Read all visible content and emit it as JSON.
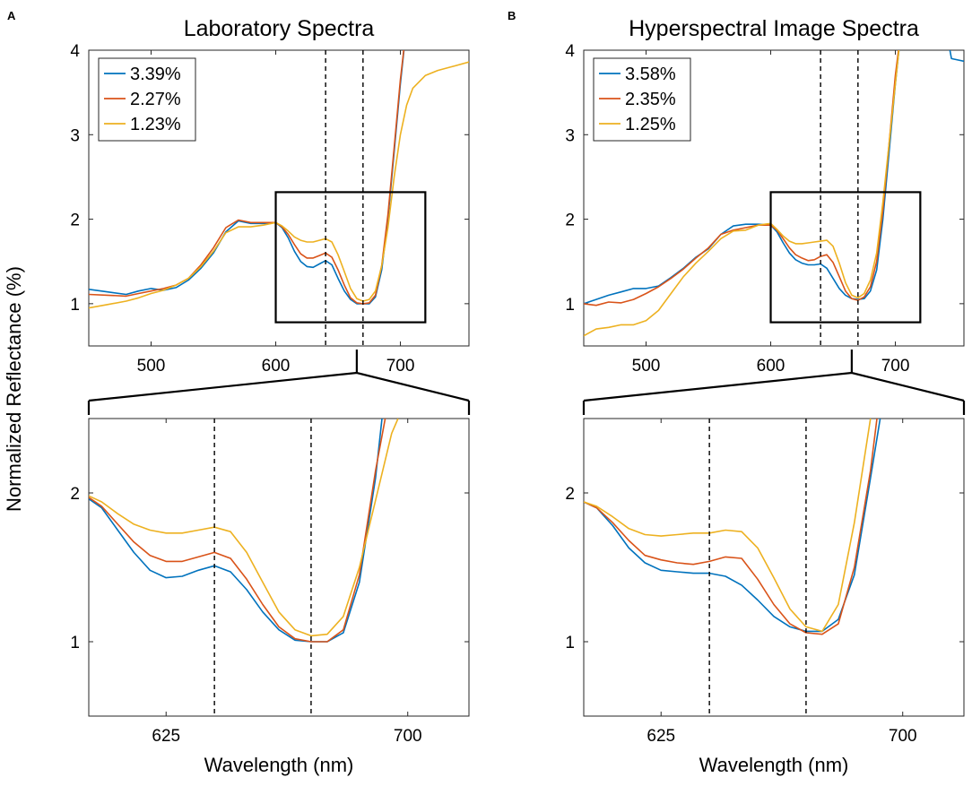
{
  "figure": {
    "ylabel": "Normalized Reflectance (%)",
    "xlabel": "Wavelength (nm)"
  },
  "chart_data": [
    {
      "id": "A-top",
      "type": "line",
      "panel_letter": "A",
      "title": "Laboratory Spectra",
      "xlim": [
        450,
        755
      ],
      "ylim": [
        0.5,
        4
      ],
      "xticks": [
        500,
        600,
        700
      ],
      "yticks": [
        1,
        2,
        3,
        4
      ],
      "legend": "top-left",
      "legend_order": [
        0,
        1,
        2
      ],
      "vlines": [
        640,
        670
      ],
      "zoom_box": {
        "x": [
          600,
          720
        ],
        "y": [
          0.78,
          2.32
        ]
      },
      "series": [
        {
          "name": "3.39%",
          "color": "#0072BD",
          "x": [
            450,
            465,
            480,
            490,
            500,
            510,
            520,
            530,
            540,
            550,
            560,
            570,
            580,
            590,
            600,
            605,
            610,
            615,
            620,
            625,
            630,
            635,
            640,
            645,
            650,
            655,
            660,
            665,
            670,
            675,
            680,
            685,
            690,
            695,
            700,
            705
          ],
          "y": [
            1.17,
            1.14,
            1.11,
            1.15,
            1.18,
            1.16,
            1.19,
            1.28,
            1.42,
            1.6,
            1.85,
            1.98,
            1.95,
            1.95,
            1.96,
            1.9,
            1.78,
            1.62,
            1.5,
            1.44,
            1.43,
            1.47,
            1.51,
            1.46,
            1.3,
            1.15,
            1.05,
            1.0,
            1.0,
            1.0,
            1.08,
            1.4,
            2.0,
            2.8,
            3.6,
            4.3
          ]
        },
        {
          "name": "2.27%",
          "color": "#D95319",
          "x": [
            450,
            465,
            480,
            490,
            500,
            510,
            520,
            530,
            540,
            550,
            560,
            570,
            580,
            590,
            600,
            605,
            610,
            615,
            620,
            625,
            630,
            635,
            640,
            645,
            650,
            655,
            660,
            665,
            670,
            675,
            680,
            685,
            690,
            695,
            700,
            705
          ],
          "y": [
            1.11,
            1.1,
            1.09,
            1.12,
            1.15,
            1.18,
            1.22,
            1.3,
            1.46,
            1.66,
            1.9,
            1.99,
            1.96,
            1.96,
            1.96,
            1.91,
            1.82,
            1.7,
            1.59,
            1.54,
            1.54,
            1.57,
            1.6,
            1.55,
            1.4,
            1.22,
            1.07,
            1.01,
            1.0,
            1.01,
            1.1,
            1.45,
            2.05,
            2.85,
            3.65,
            4.3
          ]
        },
        {
          "name": "1.23%",
          "color": "#EDB120",
          "x": [
            450,
            465,
            480,
            490,
            500,
            510,
            520,
            530,
            540,
            550,
            560,
            570,
            580,
            590,
            600,
            605,
            610,
            615,
            620,
            625,
            630,
            635,
            640,
            645,
            650,
            655,
            660,
            665,
            670,
            675,
            680,
            685,
            690,
            695,
            700,
            705,
            710,
            720,
            730,
            740,
            755
          ],
          "y": [
            0.95,
            0.99,
            1.03,
            1.07,
            1.12,
            1.16,
            1.22,
            1.3,
            1.44,
            1.62,
            1.84,
            1.91,
            1.91,
            1.93,
            1.96,
            1.92,
            1.86,
            1.79,
            1.75,
            1.73,
            1.73,
            1.75,
            1.77,
            1.73,
            1.58,
            1.38,
            1.18,
            1.06,
            1.03,
            1.05,
            1.15,
            1.45,
            1.9,
            2.5,
            3.0,
            3.35,
            3.55,
            3.7,
            3.76,
            3.8,
            3.86
          ]
        }
      ]
    },
    {
      "id": "A-bottom",
      "type": "line",
      "xlim": [
        601,
        719
      ],
      "ylim": [
        0.5,
        2.5
      ],
      "xticks": [
        625,
        700
      ],
      "yticks": [
        1,
        2
      ],
      "vlines": [
        640,
        670
      ],
      "series": [
        {
          "name": "3.39%",
          "color": "#0072BD",
          "x": [
            601,
            605,
            610,
            615,
            620,
            625,
            630,
            635,
            640,
            645,
            650,
            655,
            660,
            665,
            670,
            675,
            680,
            685,
            690,
            692
          ],
          "y": [
            1.96,
            1.9,
            1.75,
            1.6,
            1.48,
            1.43,
            1.44,
            1.48,
            1.51,
            1.47,
            1.35,
            1.2,
            1.08,
            1.01,
            1.0,
            1.0,
            1.06,
            1.4,
            2.1,
            2.5
          ]
        },
        {
          "name": "2.27%",
          "color": "#D95319",
          "x": [
            601,
            605,
            610,
            615,
            620,
            625,
            630,
            635,
            640,
            645,
            650,
            655,
            660,
            665,
            670,
            675,
            680,
            685,
            690,
            693
          ],
          "y": [
            1.97,
            1.91,
            1.79,
            1.67,
            1.58,
            1.54,
            1.54,
            1.57,
            1.6,
            1.56,
            1.42,
            1.25,
            1.1,
            1.02,
            1.0,
            1.0,
            1.08,
            1.45,
            2.15,
            2.5
          ]
        },
        {
          "name": "1.23%",
          "color": "#EDB120",
          "x": [
            601,
            605,
            610,
            615,
            620,
            625,
            630,
            635,
            640,
            645,
            650,
            655,
            660,
            665,
            670,
            675,
            680,
            685,
            690,
            695,
            697
          ],
          "y": [
            1.98,
            1.94,
            1.86,
            1.79,
            1.75,
            1.73,
            1.73,
            1.75,
            1.77,
            1.74,
            1.6,
            1.4,
            1.2,
            1.08,
            1.04,
            1.05,
            1.17,
            1.5,
            1.95,
            2.4,
            2.5
          ]
        }
      ]
    },
    {
      "id": "B-top",
      "type": "line",
      "panel_letter": "B",
      "title": "Hyperspectral Image Spectra",
      "xlim": [
        450,
        755
      ],
      "ylim": [
        0.5,
        4
      ],
      "xticks": [
        500,
        600,
        700
      ],
      "yticks": [
        1,
        2,
        3,
        4
      ],
      "legend": "top-left",
      "legend_order": [
        0,
        1,
        2
      ],
      "vlines": [
        640,
        670
      ],
      "zoom_box": {
        "x": [
          600,
          720
        ],
        "y": [
          0.78,
          2.32
        ]
      },
      "series": [
        {
          "name": "3.58%",
          "color": "#0072BD",
          "x": [
            450,
            460,
            470,
            480,
            490,
            500,
            510,
            520,
            530,
            540,
            550,
            560,
            570,
            580,
            590,
            600,
            605,
            610,
            615,
            620,
            625,
            630,
            635,
            640,
            645,
            650,
            655,
            660,
            665,
            670,
            675,
            680,
            685,
            690,
            695,
            700,
            705,
            740,
            745,
            755
          ],
          "y": [
            1.0,
            1.05,
            1.1,
            1.14,
            1.18,
            1.18,
            1.21,
            1.31,
            1.42,
            1.55,
            1.65,
            1.82,
            1.92,
            1.94,
            1.94,
            1.93,
            1.85,
            1.72,
            1.6,
            1.52,
            1.48,
            1.46,
            1.46,
            1.47,
            1.42,
            1.3,
            1.18,
            1.1,
            1.06,
            1.05,
            1.06,
            1.15,
            1.4,
            2.0,
            2.8,
            3.6,
            4.3,
            4.3,
            3.9,
            3.87
          ]
        },
        {
          "name": "2.35%",
          "color": "#D95319",
          "x": [
            450,
            460,
            470,
            480,
            490,
            500,
            510,
            520,
            530,
            540,
            550,
            560,
            570,
            580,
            590,
            600,
            605,
            610,
            615,
            620,
            625,
            630,
            635,
            640,
            645,
            650,
            655,
            660,
            665,
            670,
            675,
            680,
            685,
            690,
            695,
            700,
            705
          ],
          "y": [
            1.0,
            0.98,
            1.02,
            1.01,
            1.05,
            1.12,
            1.2,
            1.3,
            1.41,
            1.54,
            1.66,
            1.82,
            1.87,
            1.9,
            1.93,
            1.93,
            1.87,
            1.77,
            1.66,
            1.58,
            1.54,
            1.51,
            1.52,
            1.56,
            1.58,
            1.49,
            1.32,
            1.15,
            1.06,
            1.04,
            1.08,
            1.2,
            1.5,
            2.1,
            2.9,
            3.7,
            4.3
          ]
        },
        {
          "name": "1.25%",
          "color": "#EDB120",
          "x": [
            450,
            460,
            470,
            480,
            490,
            500,
            510,
            520,
            530,
            540,
            550,
            560,
            570,
            580,
            590,
            600,
            605,
            610,
            615,
            620,
            625,
            630,
            635,
            640,
            645,
            650,
            655,
            660,
            665,
            670,
            675,
            680,
            685,
            690,
            695,
            700,
            705
          ],
          "y": [
            0.62,
            0.7,
            0.72,
            0.75,
            0.75,
            0.8,
            0.92,
            1.12,
            1.32,
            1.48,
            1.62,
            1.77,
            1.86,
            1.87,
            1.93,
            1.95,
            1.88,
            1.8,
            1.74,
            1.71,
            1.71,
            1.72,
            1.73,
            1.74,
            1.75,
            1.68,
            1.48,
            1.25,
            1.1,
            1.07,
            1.12,
            1.28,
            1.6,
            2.2,
            2.9,
            3.6,
            4.3
          ]
        }
      ]
    },
    {
      "id": "B-bottom",
      "type": "line",
      "xlim": [
        601,
        719
      ],
      "ylim": [
        0.5,
        2.5
      ],
      "xticks": [
        625,
        700
      ],
      "yticks": [
        1,
        2
      ],
      "vlines": [
        640,
        670
      ],
      "series": [
        {
          "name": "3.58%",
          "color": "#0072BD",
          "x": [
            601,
            605,
            610,
            615,
            620,
            625,
            630,
            635,
            640,
            645,
            650,
            655,
            660,
            665,
            670,
            675,
            680,
            685,
            690,
            693
          ],
          "y": [
            1.94,
            1.9,
            1.78,
            1.63,
            1.53,
            1.48,
            1.47,
            1.46,
            1.46,
            1.44,
            1.38,
            1.28,
            1.17,
            1.1,
            1.07,
            1.07,
            1.15,
            1.45,
            2.1,
            2.5
          ]
        },
        {
          "name": "2.35%",
          "color": "#D95319",
          "x": [
            601,
            605,
            610,
            615,
            620,
            625,
            630,
            635,
            640,
            645,
            650,
            655,
            660,
            665,
            670,
            675,
            680,
            685,
            690,
            692
          ],
          "y": [
            1.94,
            1.9,
            1.8,
            1.68,
            1.58,
            1.55,
            1.53,
            1.52,
            1.54,
            1.57,
            1.56,
            1.42,
            1.25,
            1.12,
            1.06,
            1.05,
            1.12,
            1.5,
            2.15,
            2.5
          ]
        },
        {
          "name": "1.25%",
          "color": "#EDB120",
          "x": [
            601,
            605,
            610,
            615,
            620,
            625,
            630,
            635,
            640,
            645,
            650,
            655,
            660,
            665,
            670,
            675,
            680,
            685,
            690
          ],
          "y": [
            1.94,
            1.91,
            1.84,
            1.76,
            1.72,
            1.71,
            1.72,
            1.73,
            1.73,
            1.75,
            1.74,
            1.63,
            1.43,
            1.22,
            1.1,
            1.07,
            1.25,
            1.8,
            2.5
          ]
        }
      ]
    }
  ]
}
